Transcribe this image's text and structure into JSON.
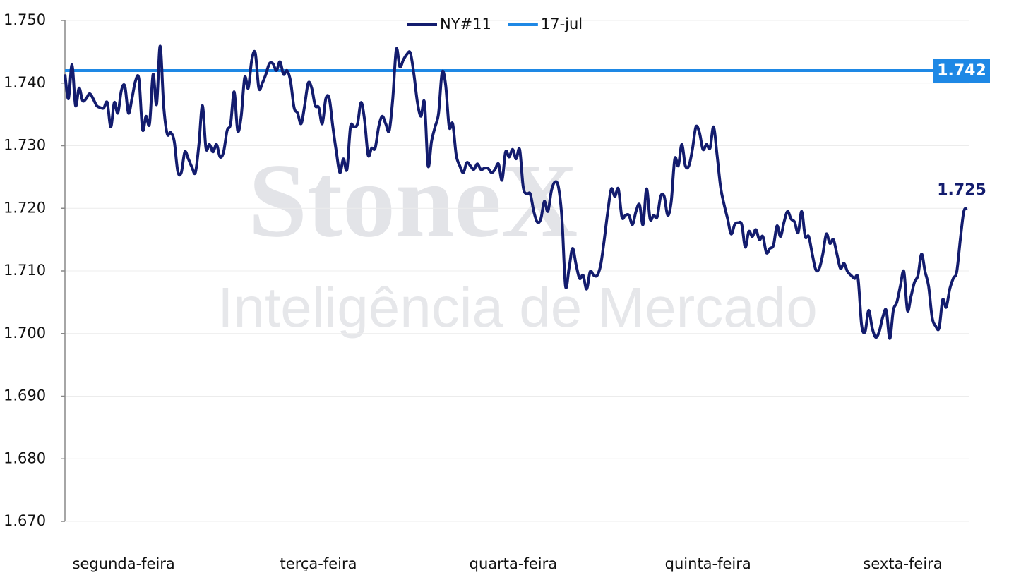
{
  "chart_data": {
    "type": "line",
    "watermark": {
      "title": "StoneX",
      "subtitle": "Inteligência de Mercado"
    },
    "x_labels": [
      "segunda-feira",
      "terça-feira",
      "quarta-feira",
      "quinta-feira",
      "sexta-feira"
    ],
    "ylim": [
      1.67,
      1.75
    ],
    "yticks": [
      {
        "value": 1.67,
        "label": "1.670"
      },
      {
        "value": 1.68,
        "label": "1.680"
      },
      {
        "value": 1.69,
        "label": "1.690"
      },
      {
        "value": 1.7,
        "label": "1.700"
      },
      {
        "value": 1.71,
        "label": "1.710"
      },
      {
        "value": 1.72,
        "label": "1.720"
      },
      {
        "value": 1.73,
        "label": "1.730"
      },
      {
        "value": 1.74,
        "label": "1.740"
      },
      {
        "value": 1.75,
        "label": "1.750"
      }
    ],
    "grid": true,
    "legend": "top",
    "series": [
      {
        "name": "NY#11",
        "color": "#131c6e",
        "values": [
          1.7414,
          1.7375,
          1.7429,
          1.7364,
          1.7392,
          1.7372,
          1.7375,
          1.7383,
          1.7375,
          1.7364,
          1.7361,
          1.736,
          1.7369,
          1.733,
          1.7369,
          1.7352,
          1.7388,
          1.7395,
          1.7352,
          1.7375,
          1.7403,
          1.7406,
          1.7326,
          1.7347,
          1.7335,
          1.7414,
          1.7366,
          1.7459,
          1.7364,
          1.7319,
          1.7321,
          1.7307,
          1.7259,
          1.7257,
          1.729,
          1.7279,
          1.7266,
          1.7257,
          1.7302,
          1.7364,
          1.7296,
          1.7302,
          1.729,
          1.7302,
          1.7282,
          1.729,
          1.7324,
          1.7335,
          1.7386,
          1.7324,
          1.7347,
          1.7409,
          1.7392,
          1.7437,
          1.7448,
          1.7392,
          1.74,
          1.7414,
          1.7431,
          1.7431,
          1.742,
          1.7434,
          1.7414,
          1.742,
          1.7403,
          1.7361,
          1.7352,
          1.7335,
          1.7364,
          1.74,
          1.7392,
          1.7364,
          1.7361,
          1.7335,
          1.7375,
          1.7375,
          1.733,
          1.729,
          1.7257,
          1.7279,
          1.7262,
          1.733,
          1.733,
          1.7335,
          1.7369,
          1.7341,
          1.7285,
          1.7296,
          1.7296,
          1.733,
          1.7347,
          1.7335,
          1.7324,
          1.7375,
          1.7454,
          1.7426,
          1.7437,
          1.7446,
          1.7448,
          1.7414,
          1.7369,
          1.7347,
          1.7369,
          1.7268,
          1.7307,
          1.733,
          1.7352,
          1.7417,
          1.7397,
          1.733,
          1.7335,
          1.7285,
          1.7268,
          1.7257,
          1.7273,
          1.7268,
          1.7262,
          1.7271,
          1.7262,
          1.7264,
          1.7264,
          1.7257,
          1.7262,
          1.7271,
          1.7245,
          1.729,
          1.7282,
          1.7294,
          1.7279,
          1.7294,
          1.7234,
          1.7223,
          1.7223,
          1.7195,
          1.7178,
          1.7183,
          1.7211,
          1.7195,
          1.7228,
          1.7242,
          1.7234,
          1.7183,
          1.7076,
          1.7104,
          1.7136,
          1.711,
          1.7088,
          1.7093,
          1.7071,
          1.7099,
          1.7093,
          1.7093,
          1.711,
          1.715,
          1.7195,
          1.7231,
          1.7219,
          1.7231,
          1.7186,
          1.7189,
          1.7189,
          1.7174,
          1.7195,
          1.7206,
          1.7174,
          1.7231,
          1.7183,
          1.7189,
          1.7186,
          1.7219,
          1.7219,
          1.7189,
          1.7211,
          1.7279,
          1.7268,
          1.7302,
          1.7268,
          1.7268,
          1.7294,
          1.733,
          1.7321,
          1.7294,
          1.7302,
          1.7296,
          1.733,
          1.7285,
          1.7234,
          1.7206,
          1.7183,
          1.7159,
          1.7174,
          1.7177,
          1.7174,
          1.7138,
          1.7163,
          1.7155,
          1.7166,
          1.715,
          1.7155,
          1.7129,
          1.7136,
          1.7141,
          1.7172,
          1.7155,
          1.7178,
          1.7195,
          1.7183,
          1.7178,
          1.7161,
          1.7195,
          1.7155,
          1.7155,
          1.7127,
          1.7102,
          1.7104,
          1.7127,
          1.7159,
          1.7144,
          1.715,
          1.7127,
          1.7104,
          1.7112,
          1.7099,
          1.7093,
          1.7088,
          1.7088,
          1.7014,
          1.7003,
          1.7037,
          1.7009,
          1.6994,
          1.7003,
          1.7026,
          1.7037,
          1.6992,
          1.7037,
          1.705,
          1.7076,
          1.7099,
          1.7037,
          1.7059,
          1.7082,
          1.7093,
          1.7127,
          1.7099,
          1.7076,
          1.7026,
          1.7012,
          1.7009,
          1.7054,
          1.7042,
          1.7071,
          1.7088,
          1.7099,
          1.715,
          1.7195,
          1.7199
        ]
      }
    ],
    "reference_lines": [
      {
        "name": "17-jul",
        "color": "#1e88e5",
        "value": 1.742
      }
    ],
    "annotations": [
      {
        "text": "1.725"
      }
    ]
  }
}
